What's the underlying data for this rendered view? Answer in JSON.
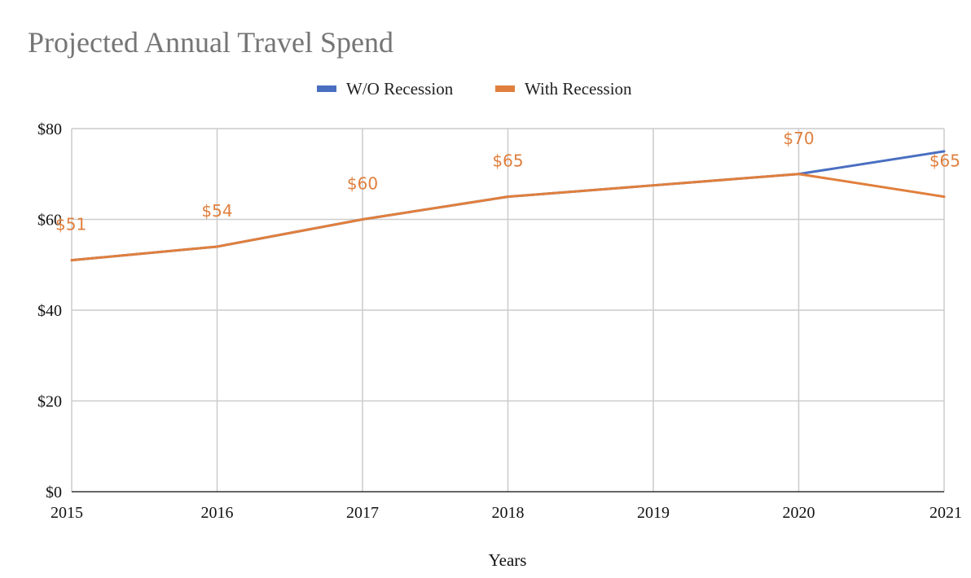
{
  "chart_data": {
    "type": "line",
    "title": "Projected Annual Travel Spend",
    "xlabel": "Years",
    "ylabel": "",
    "categories": [
      "2015",
      "2016",
      "2017",
      "2018",
      "2019",
      "2020",
      "2021"
    ],
    "ylim": [
      0,
      80
    ],
    "yticks": [
      0,
      20,
      40,
      60,
      80
    ],
    "ytick_labels": [
      "$0",
      "$20",
      "$40",
      "$60",
      "$80"
    ],
    "grid": true,
    "legend_position": "top-center",
    "series": [
      {
        "name": "W/O Recession",
        "color": "#4a6fc1",
        "values": [
          51,
          54,
          60,
          65,
          67.5,
          70,
          75
        ]
      },
      {
        "name": "With Recession",
        "color": "#e07f3d",
        "values": [
          51,
          54,
          60,
          65,
          67.5,
          70,
          65
        ]
      }
    ],
    "data_labels": [
      {
        "category": "2015",
        "value": 51,
        "text": "$51"
      },
      {
        "category": "2016",
        "value": 54,
        "text": "$54"
      },
      {
        "category": "2017",
        "value": 60,
        "text": "$60"
      },
      {
        "category": "2018",
        "value": 65,
        "text": "$65"
      },
      {
        "category": "2020",
        "value": 70,
        "text": "$70"
      },
      {
        "category": "2021",
        "value": 65,
        "text": "$65"
      }
    ],
    "data_label_color": "#e07f3d"
  }
}
